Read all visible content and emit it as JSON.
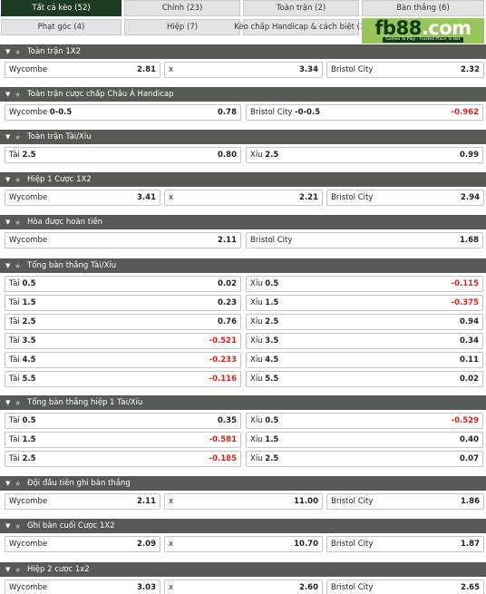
{
  "tabs": [
    {
      "label": "Tất cả kèo (52)",
      "active": true
    },
    {
      "label": "Chính (23)",
      "active": false
    },
    {
      "label": "Toàn trận (2)",
      "active": false
    },
    {
      "label": "Bàn thắng (6)",
      "active": false
    },
    {
      "label": "Phạt góc (4)",
      "active": false
    },
    {
      "label": "Hiệp (7)",
      "active": false
    },
    {
      "label": "Kèo chấp Handicap & cách biệt (1)",
      "active": false
    }
  ],
  "logo": {
    "main": "fb88",
    "suffix": ".com",
    "tagline": "Games To Play · Trusted Place To Bet"
  },
  "icons": {
    "collapse": "chevron-down-icon",
    "favorite": "star-icon"
  },
  "colors": {
    "header_bg": "#555a55",
    "active_tab": "#1d3b23",
    "negative_odds": "#e0231b",
    "logo_bg": "#98c65b"
  },
  "sections": [
    {
      "title": "Toàn trận 1X2",
      "cols": 3,
      "rows": [
        [
          {
            "pre": "Wycombe",
            "val": "",
            "odds": "2.81"
          },
          {
            "pre": "x",
            "val": "",
            "odds": "3.34"
          },
          {
            "pre": "Bristol City",
            "val": "",
            "odds": "2.32"
          }
        ]
      ]
    },
    {
      "title": "Toàn trận cược chấp Châu Á Handicap",
      "cols": 2,
      "rows": [
        [
          {
            "pre": "Wycombe",
            "val": "0-0.5",
            "odds": "0.78"
          },
          {
            "pre": "Bristol City",
            "val": "-0-0.5",
            "odds": "-0.962"
          }
        ]
      ]
    },
    {
      "title": "Toàn trận Tài/Xỉu",
      "cols": 2,
      "rows": [
        [
          {
            "pre": "Tài",
            "val": "2.5",
            "odds": "0.80"
          },
          {
            "pre": "Xỉu",
            "val": "2.5",
            "odds": "0.99"
          }
        ]
      ]
    },
    {
      "title": "Hiệp 1 Cược 1X2",
      "cols": 3,
      "rows": [
        [
          {
            "pre": "Wycombe",
            "val": "",
            "odds": "3.41"
          },
          {
            "pre": "x",
            "val": "",
            "odds": "2.21"
          },
          {
            "pre": "Bristol City",
            "val": "",
            "odds": "2.94"
          }
        ]
      ]
    },
    {
      "title": "Hòa được hoàn tiền",
      "cols": 2,
      "rows": [
        [
          {
            "pre": "Wycombe",
            "val": "",
            "odds": "2.11"
          },
          {
            "pre": "Bristol City",
            "val": "",
            "odds": "1.68"
          }
        ]
      ]
    },
    {
      "title": "Tổng bàn thắng Tài/Xỉu",
      "cols": 2,
      "rows": [
        [
          {
            "pre": "Tài",
            "val": "0.5",
            "odds": "0.02"
          },
          {
            "pre": "Xỉu",
            "val": "0.5",
            "odds": "-0.115"
          }
        ],
        [
          {
            "pre": "Tài",
            "val": "1.5",
            "odds": "0.23"
          },
          {
            "pre": "Xỉu",
            "val": "1.5",
            "odds": "-0.375"
          }
        ],
        [
          {
            "pre": "Tài",
            "val": "2.5",
            "odds": "0.76"
          },
          {
            "pre": "Xỉu",
            "val": "2.5",
            "odds": "0.94"
          }
        ],
        [
          {
            "pre": "Tài",
            "val": "3.5",
            "odds": "-0.521"
          },
          {
            "pre": "Xỉu",
            "val": "3.5",
            "odds": "0.34"
          }
        ],
        [
          {
            "pre": "Tài",
            "val": "4.5",
            "odds": "-0.233"
          },
          {
            "pre": "Xỉu",
            "val": "4.5",
            "odds": "0.11"
          }
        ],
        [
          {
            "pre": "Tài",
            "val": "5.5",
            "odds": "-0.116"
          },
          {
            "pre": "Xỉu",
            "val": "5.5",
            "odds": "0.02"
          }
        ]
      ]
    },
    {
      "title": "Tổng bàn thắng hiệp 1 Tài/Xỉu",
      "cols": 2,
      "rows": [
        [
          {
            "pre": "Tài",
            "val": "0.5",
            "odds": "0.35"
          },
          {
            "pre": "Xỉu",
            "val": "0.5",
            "odds": "-0.529"
          }
        ],
        [
          {
            "pre": "Tài",
            "val": "1.5",
            "odds": "-0.581"
          },
          {
            "pre": "Xỉu",
            "val": "1.5",
            "odds": "0.40"
          }
        ],
        [
          {
            "pre": "Tài",
            "val": "2.5",
            "odds": "-0.185"
          },
          {
            "pre": "Xỉu",
            "val": "2.5",
            "odds": "0.07"
          }
        ]
      ]
    },
    {
      "title": "Đội đầu tiên ghi bàn thắng",
      "cols": 3,
      "rows": [
        [
          {
            "pre": "Wycombe",
            "val": "",
            "odds": "2.11"
          },
          {
            "pre": "x",
            "val": "",
            "odds": "11.00"
          },
          {
            "pre": "Bristol City",
            "val": "",
            "odds": "1.86"
          }
        ]
      ]
    },
    {
      "title": "Ghi bàn cuối Cược 1X2",
      "cols": 3,
      "rows": [
        [
          {
            "pre": "Wycombe",
            "val": "",
            "odds": "2.09"
          },
          {
            "pre": "x",
            "val": "",
            "odds": "10.70"
          },
          {
            "pre": "Bristol City",
            "val": "",
            "odds": "1.87"
          }
        ]
      ]
    },
    {
      "title": "Hiệp 2 cược 1x2",
      "cols": 3,
      "rows": [
        [
          {
            "pre": "Wycombe",
            "val": "",
            "odds": "3.03"
          },
          {
            "pre": "x",
            "val": "",
            "odds": "2.60"
          },
          {
            "pre": "Bristol City",
            "val": "",
            "odds": "2.65"
          }
        ]
      ]
    }
  ]
}
